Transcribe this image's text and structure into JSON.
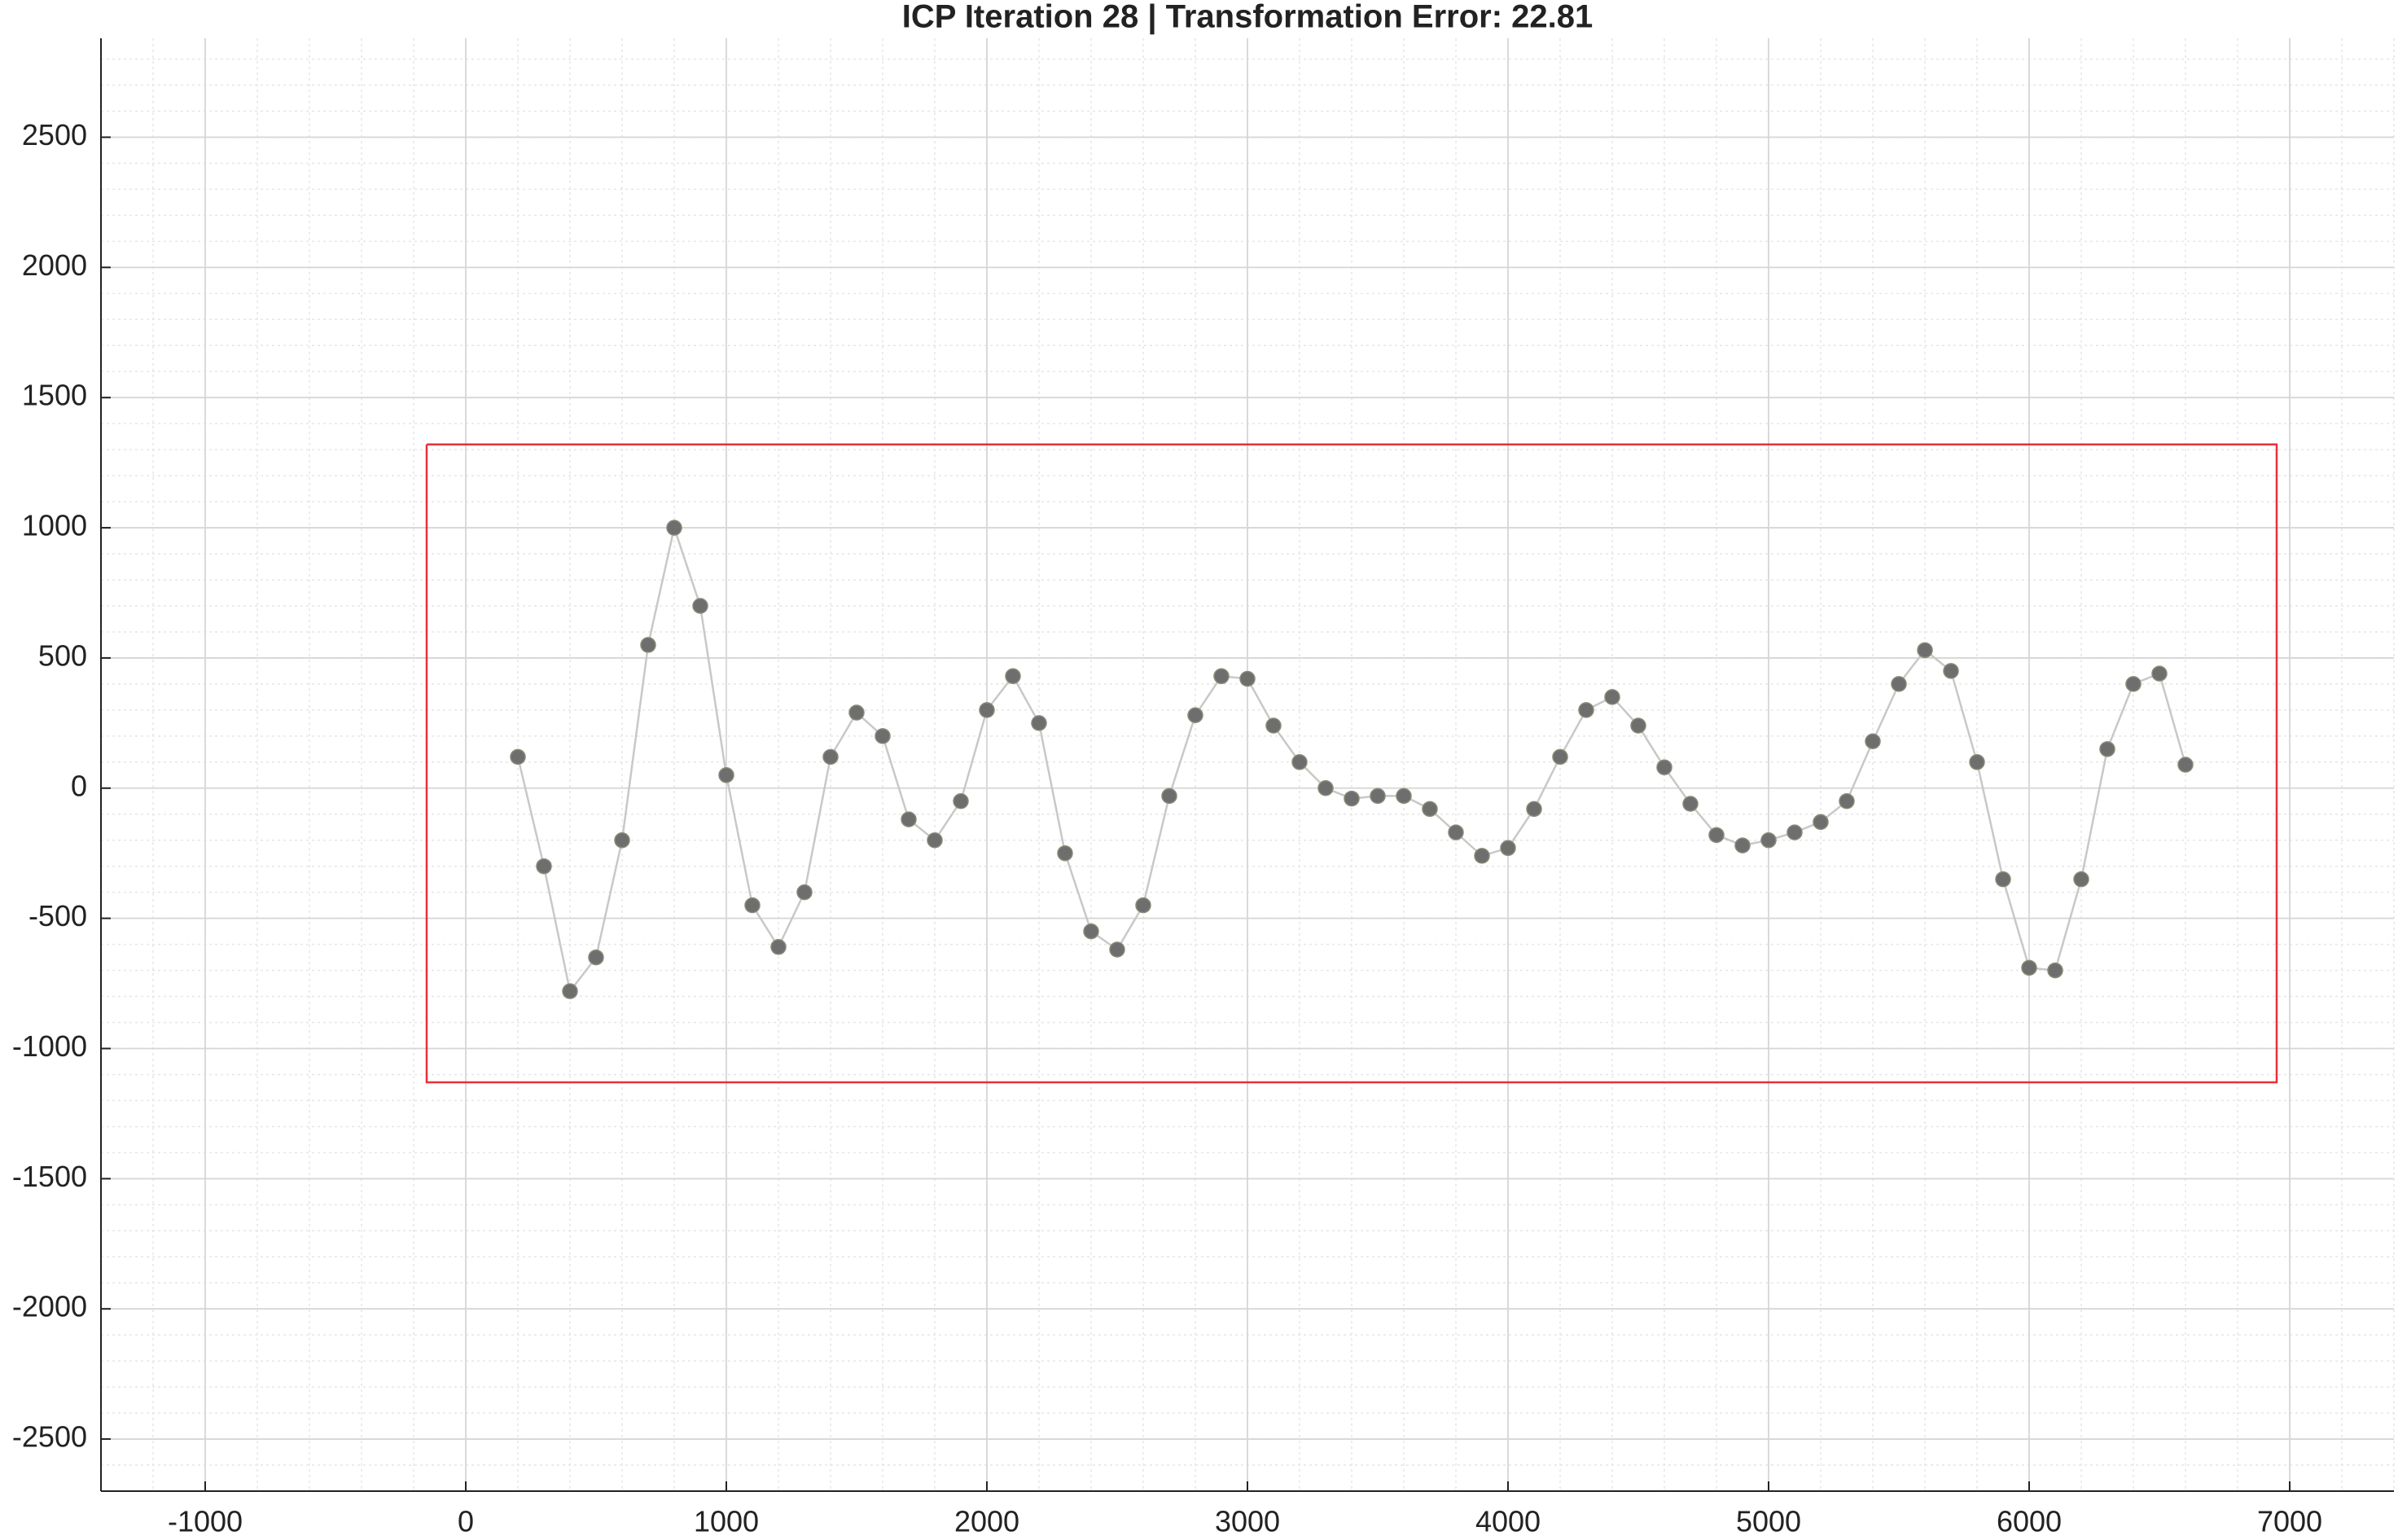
{
  "chart_data": {
    "type": "scatter",
    "title": "ICP Iteration 28 | Transformation Error: 22.81",
    "xlim": [
      -1400,
      7400
    ],
    "xticks": [
      -1000,
      0,
      1000,
      2000,
      3000,
      4000,
      5000,
      6000,
      7000
    ],
    "ylim": [
      -2700,
      2880
    ],
    "yticks": [
      -2500,
      -2000,
      -1500,
      -1000,
      -500,
      0,
      500,
      1000,
      1500,
      2000,
      2500
    ],
    "grid": true,
    "minor_grid": true,
    "series": [
      {
        "mode": "line+markers",
        "color": "#6e6e6e",
        "line_color": "#c8c8c8",
        "x": [
          200,
          300,
          400,
          500,
          600,
          700,
          800,
          900,
          1000,
          1100,
          1200,
          1300,
          1400,
          1500,
          1600,
          1700,
          1800,
          1900,
          2000,
          2100,
          2200,
          2300,
          2400,
          2500,
          2600,
          2700,
          2800,
          2900,
          3000,
          3100,
          3200,
          3300,
          3400,
          3500,
          3600,
          3700,
          3800,
          3900,
          4000,
          4100,
          4200,
          4300,
          4400,
          4500,
          4600,
          4700,
          4800,
          4900,
          5000,
          5100,
          5200,
          5300,
          5400,
          5500,
          5600,
          5700,
          5800,
          5900,
          6000,
          6100,
          6200,
          6300,
          6400,
          6500,
          6600
        ],
        "values": [
          120,
          -300,
          -780,
          -650,
          -200,
          550,
          1000,
          700,
          50,
          -450,
          -610,
          -400,
          120,
          290,
          200,
          -120,
          -200,
          -50,
          300,
          430,
          250,
          -250,
          -550,
          -620,
          -450,
          -30,
          280,
          430,
          420,
          240,
          100,
          0,
          -40,
          -30,
          -30,
          -80,
          -170,
          -260,
          -230,
          -80,
          120,
          300,
          350,
          240,
          80,
          -60,
          -180,
          -220,
          -200,
          -170,
          -130,
          -50,
          180,
          400,
          530,
          450,
          100,
          -350,
          -690,
          -700,
          -350,
          150,
          400,
          440,
          90
        ]
      },
      {
        "mode": "line",
        "color": "#e8303a",
        "x": [
          -150,
          6950,
          6950,
          -150,
          -150
        ],
        "values": [
          1320,
          1320,
          -1130,
          -1130,
          1320
        ]
      }
    ]
  }
}
